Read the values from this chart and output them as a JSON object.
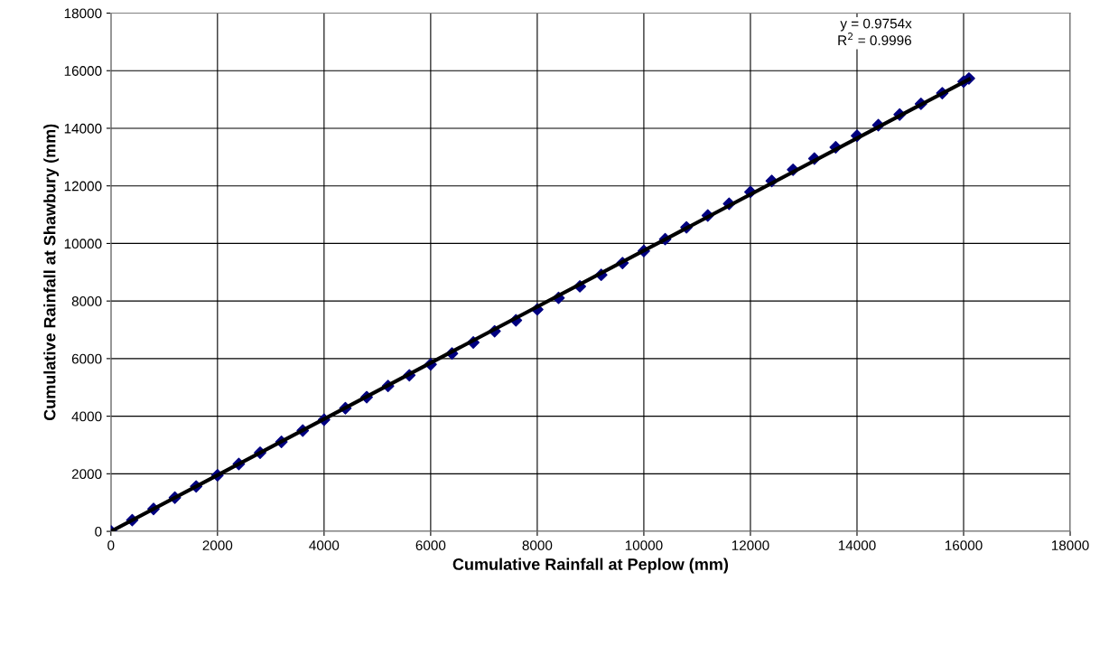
{
  "chart_data": {
    "type": "scatter",
    "xlabel": "Cumulative Rainfall at Peplow (mm)",
    "ylabel": "Cumulative Rainfall at Shawbury (mm)",
    "xlim": [
      0,
      18000
    ],
    "ylim": [
      0,
      18000
    ],
    "xticks": [
      0,
      2000,
      4000,
      6000,
      8000,
      10000,
      12000,
      14000,
      16000,
      18000
    ],
    "yticks": [
      0,
      2000,
      4000,
      6000,
      8000,
      10000,
      12000,
      14000,
      16000,
      18000
    ],
    "grid": true,
    "marker": "diamond",
    "annotations": [
      "y = 0.9754x\nR$^{2}$ = 0.9996"
    ],
    "series": [
      {
        "color": "#000080",
        "x": [
          0,
          400,
          800,
          1200,
          1600,
          2000,
          2400,
          2800,
          3200,
          3600,
          4000,
          4400,
          4800,
          5200,
          5600,
          6000,
          6400,
          6800,
          7200,
          7600,
          8000,
          8400,
          8800,
          9200,
          9600,
          10000,
          10400,
          10800,
          11200,
          11600,
          12000,
          12400,
          12800,
          13200,
          13600,
          14000,
          14400,
          14800,
          15200,
          15600,
          16000,
          16100
        ],
        "values": [
          0,
          390,
          780,
          1170,
          1560,
          1950,
          2340,
          2730,
          3110,
          3500,
          3880,
          4280,
          4660,
          5050,
          5420,
          5800,
          6180,
          6560,
          6950,
          7330,
          7710,
          8110,
          8510,
          8910,
          9320,
          9740,
          10150,
          10560,
          10970,
          11380,
          11790,
          12170,
          12560,
          12950,
          13340,
          13740,
          14110,
          14480,
          14850,
          15220,
          15620,
          15730
        ]
      },
      {
        "type": "line",
        "color": "#000000",
        "marker": "none",
        "x": [
          0,
          16100
        ],
        "values": [
          0,
          15700
        ]
      }
    ]
  }
}
